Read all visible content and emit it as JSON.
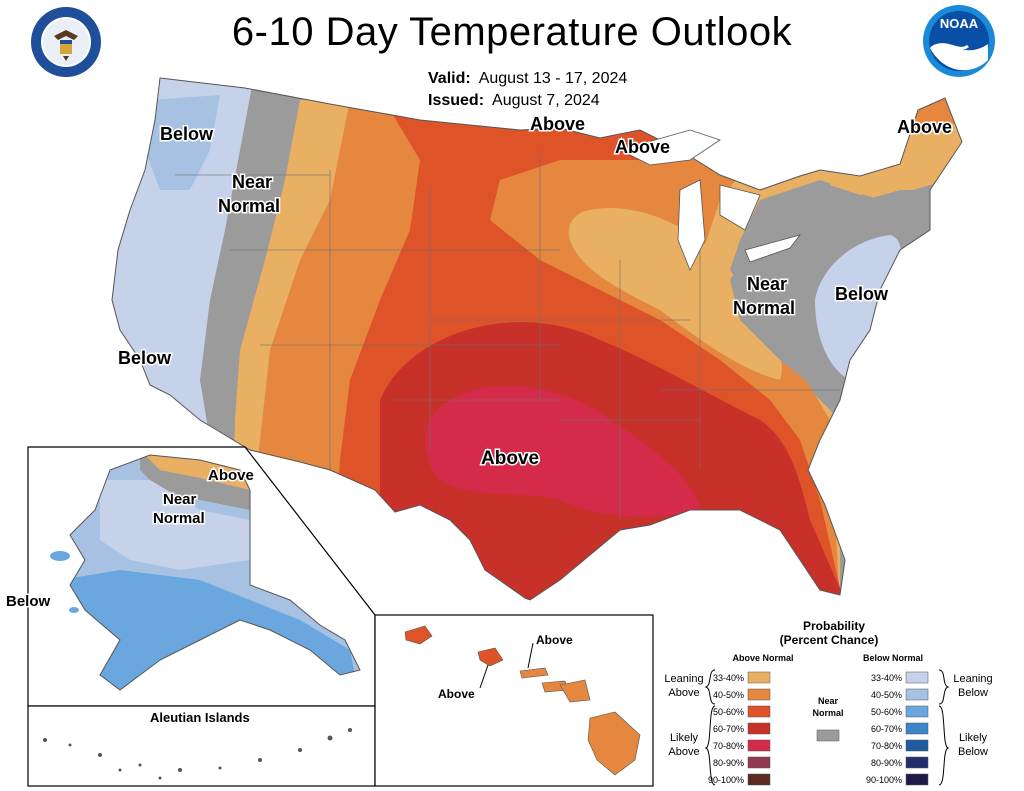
{
  "title": "6-10 Day Temperature Outlook",
  "valid": {
    "label": "Valid:",
    "value": "August 13 - 17, 2024"
  },
  "issued": {
    "label": "Issued:",
    "value": "August 7, 2024"
  },
  "logos": {
    "left": "department-of-commerce-seal",
    "right": "noaa-logo",
    "noaa_text": "NOAA"
  },
  "map_labels": {
    "below": "Below",
    "above": "Above",
    "near1": "Near",
    "near2": "Normal",
    "aleutian": "Aleutian Islands"
  },
  "legend": {
    "title1": "Probability",
    "title2": "(Percent Chance)",
    "above_header": "Above Normal",
    "below_header": "Below Normal",
    "near_label1": "Near",
    "near_label2": "Normal",
    "leaning_above1": "Leaning",
    "leaning_above2": "Above",
    "likely_above1": "Likely",
    "likely_above2": "Above",
    "leaning_below1": "Leaning",
    "leaning_below2": "Below",
    "likely_below1": "Likely",
    "likely_below2": "Below",
    "above_bins": [
      {
        "label": "33-40%",
        "color": "#e9b064"
      },
      {
        "label": "40-50%",
        "color": "#e5873f"
      },
      {
        "label": "50-60%",
        "color": "#df5328"
      },
      {
        "label": "60-70%",
        "color": "#c8302a"
      },
      {
        "label": "70-80%",
        "color": "#d52b4a"
      },
      {
        "label": "80-90%",
        "color": "#8f3a4e"
      },
      {
        "label": "90-100%",
        "color": "#5b2a1f"
      }
    ],
    "below_bins": [
      {
        "label": "33-40%",
        "color": "#c6d1ea"
      },
      {
        "label": "40-50%",
        "color": "#a7c1e2"
      },
      {
        "label": "50-60%",
        "color": "#6aa7df"
      },
      {
        "label": "60-70%",
        "color": "#3a86c9"
      },
      {
        "label": "70-80%",
        "color": "#1d5c9e"
      },
      {
        "label": "80-90%",
        "color": "#232e6e"
      },
      {
        "label": "90-100%",
        "color": "#1e1a4c"
      }
    ],
    "near_color": "#9b9b9b"
  }
}
